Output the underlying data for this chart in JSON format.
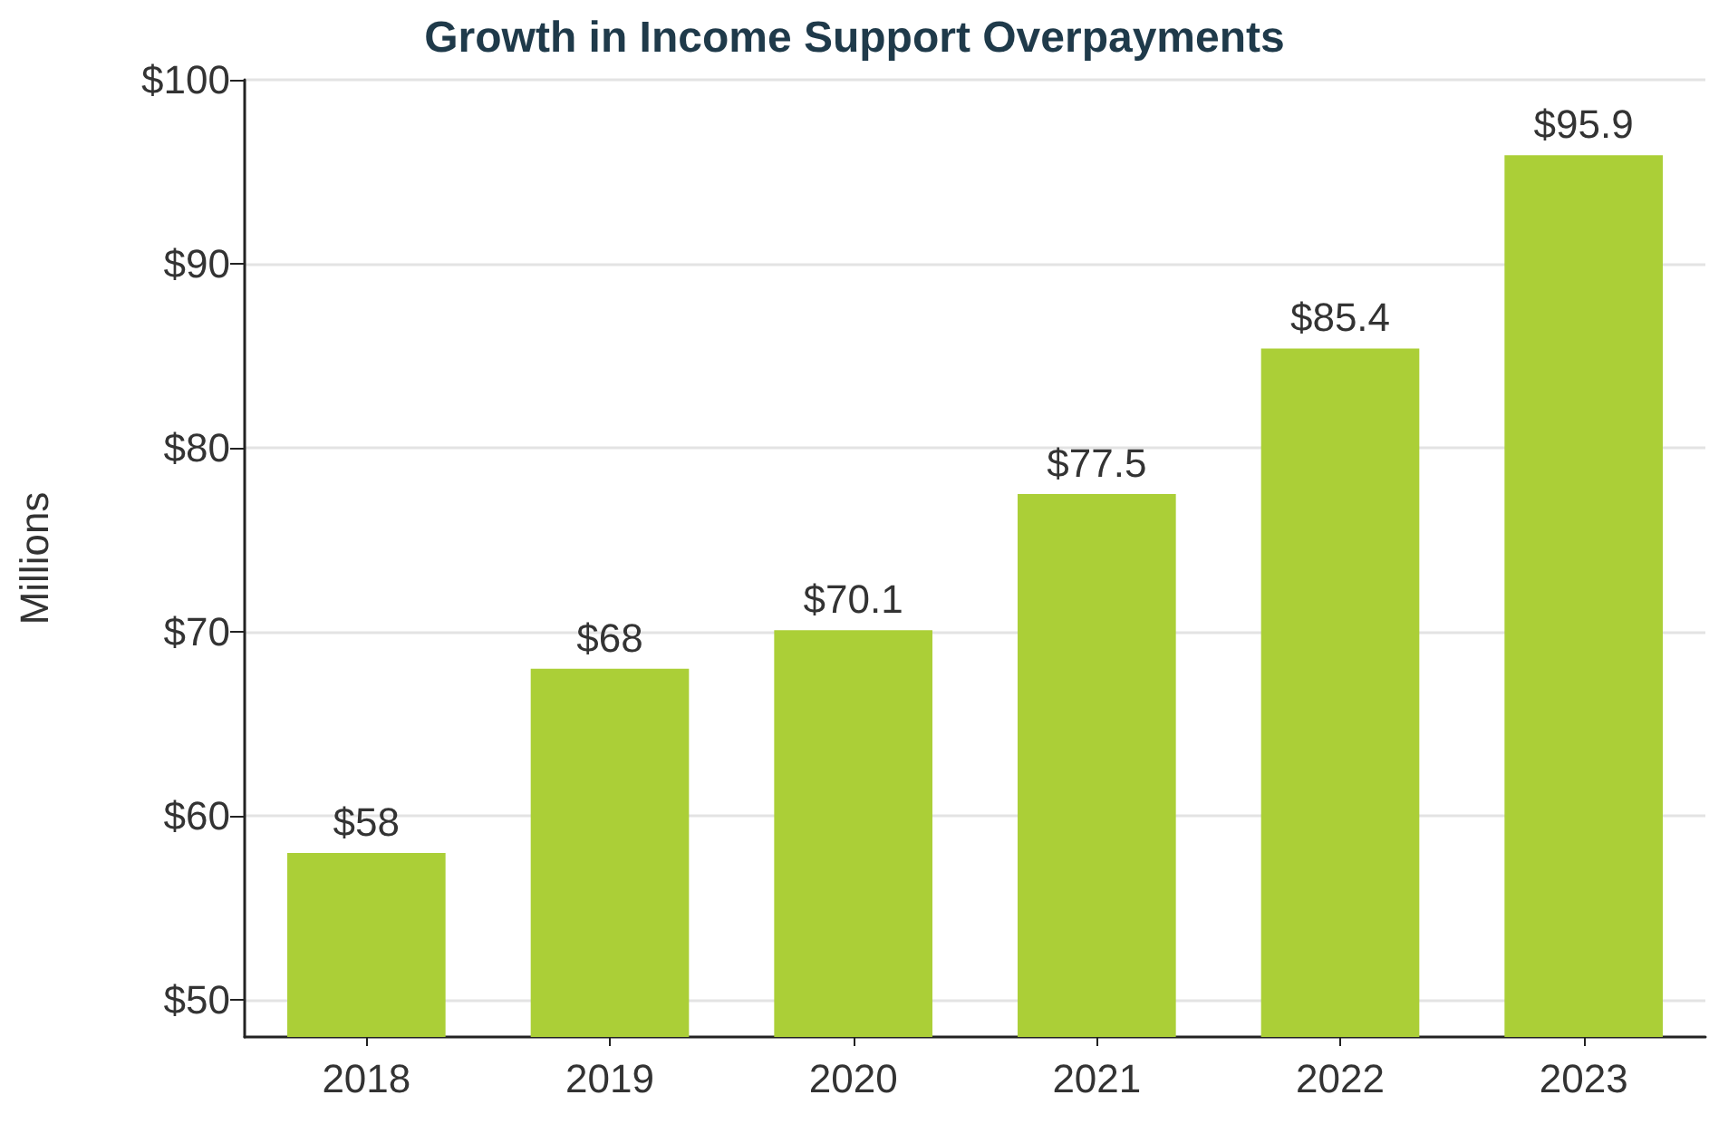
{
  "chart_data": {
    "type": "bar",
    "title": "Growth in Income Support Overpayments",
    "ylabel": "Millions",
    "categories": [
      "2018",
      "2019",
      "2020",
      "2021",
      "2022",
      "2023"
    ],
    "values": [
      58,
      68,
      70.1,
      77.5,
      85.4,
      95.9
    ],
    "value_labels": [
      "$58",
      "$68",
      "$70.1",
      "$77.5",
      "$85.4",
      "$95.9"
    ],
    "color": "#abcf37",
    "ylim": [
      48,
      100
    ],
    "yticks": [
      {
        "value": 50,
        "label": "$50"
      },
      {
        "value": 60,
        "label": "$60"
      },
      {
        "value": 70,
        "label": "$70"
      },
      {
        "value": 80,
        "label": "$80"
      },
      {
        "value": 90,
        "label": "$90"
      },
      {
        "value": 100,
        "label": "$100"
      }
    ],
    "grid": "y"
  }
}
